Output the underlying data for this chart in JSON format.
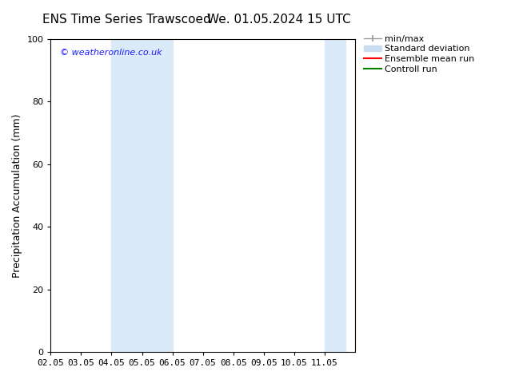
{
  "title_left": "ENS Time Series Trawscoed",
  "title_right": "We. 01.05.2024 15 UTC",
  "ylabel": "Precipitation Accumulation (mm)",
  "ylim": [
    0,
    100
  ],
  "yticks": [
    0,
    20,
    40,
    60,
    80,
    100
  ],
  "xtick_labels": [
    "02.05",
    "03.05",
    "04.05",
    "05.05",
    "06.05",
    "07.05",
    "08.05",
    "09.05",
    "10.05",
    "11.05"
  ],
  "xtick_days": [
    2,
    3,
    4,
    5,
    6,
    7,
    8,
    9,
    10,
    11
  ],
  "xlim_days": [
    2,
    12
  ],
  "shaded_regions": [
    {
      "xmin_day": 4,
      "xmax_day": 6,
      "color": "#daeaf8"
    },
    {
      "xmin_day": 11,
      "xmax_day": 11.7,
      "color": "#daeaf8"
    }
  ],
  "watermark_text": "© weatheronline.co.uk",
  "watermark_color": "#1a1aff",
  "legend_labels": [
    "min/max",
    "Standard deviation",
    "Ensemble mean run",
    "Controll run"
  ],
  "legend_colors": [
    "#999999",
    "#c8ddf0",
    "red",
    "green"
  ],
  "bg_color": "#ffffff",
  "title_fontsize": 11,
  "tick_fontsize": 8,
  "ylabel_fontsize": 9,
  "legend_fontsize": 8
}
